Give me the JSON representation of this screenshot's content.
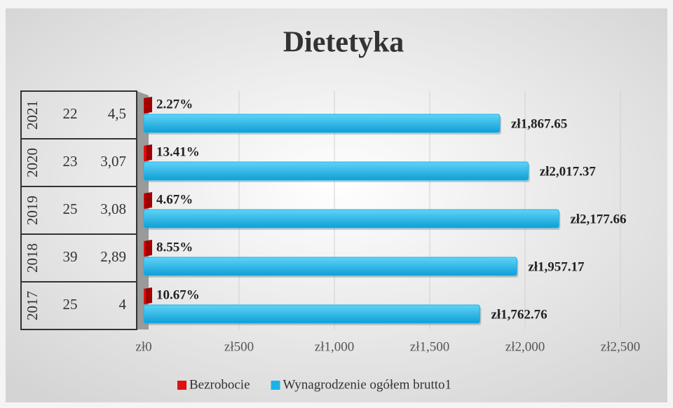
{
  "chart_data": {
    "type": "bar",
    "orientation": "horizontal",
    "title": "Dietetyka",
    "categories": [
      "2017",
      "2018",
      "2019",
      "2020",
      "2021"
    ],
    "table": [
      [
        "25",
        "4"
      ],
      [
        "39",
        "2,89"
      ],
      [
        "25",
        "3,08"
      ],
      [
        "23",
        "3,07"
      ],
      [
        "22",
        "4,5"
      ]
    ],
    "series": [
      {
        "name": "Bezrobocie",
        "color": "#e01010",
        "values": [
          10.67,
          8.55,
          4.67,
          13.41,
          2.27
        ],
        "value_labels": [
          "10.67%",
          "8.55%",
          "4.67%",
          "13.41%",
          "2.27%"
        ]
      },
      {
        "name": "Wynagrodzenie ogółem brutto1",
        "color": "#19b4ea",
        "values": [
          1762.76,
          1957.17,
          2177.66,
          2017.37,
          1867.65
        ],
        "value_labels": [
          "zł1,762.76",
          "zł1,957.17",
          "zł2,177.66",
          "zł2,017.37",
          "zł1,867.65"
        ]
      }
    ],
    "xlim": [
      0,
      2500
    ],
    "xticks": [
      {
        "value": 0,
        "label": "zł0"
      },
      {
        "value": 500,
        "label": "zł500"
      },
      {
        "value": 1000,
        "label": "zł1,000"
      },
      {
        "value": 1500,
        "label": "zł1,500"
      },
      {
        "value": 2000,
        "label": "zł2,000"
      },
      {
        "value": 2500,
        "label": "zł2,500"
      }
    ],
    "grid": true,
    "legend": "bottom"
  }
}
